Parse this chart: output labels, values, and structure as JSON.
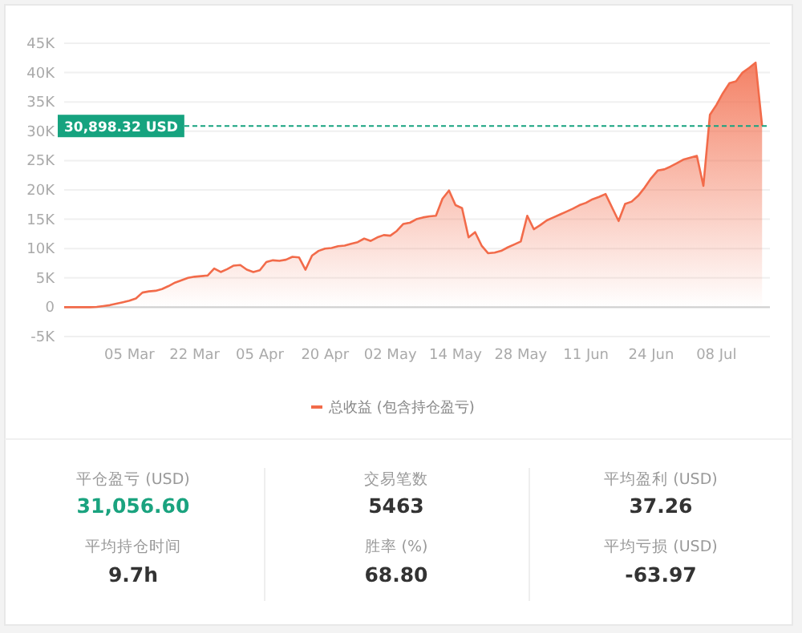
{
  "chart_data": [
    {
      "type": "area",
      "categories": [
        null,
        null,
        null,
        null,
        null,
        null,
        null,
        null,
        null,
        null,
        "05 Mar",
        null,
        null,
        null,
        null,
        null,
        null,
        null,
        null,
        null,
        "22 Mar",
        null,
        null,
        null,
        null,
        null,
        null,
        null,
        null,
        null,
        "05 Apr",
        null,
        null,
        null,
        null,
        null,
        null,
        null,
        null,
        null,
        "20 Apr",
        null,
        null,
        null,
        null,
        null,
        null,
        null,
        null,
        null,
        "02 May",
        null,
        null,
        null,
        null,
        null,
        null,
        null,
        null,
        null,
        "14 May",
        null,
        null,
        null,
        null,
        null,
        null,
        null,
        null,
        null,
        "28 May",
        null,
        null,
        null,
        null,
        null,
        null,
        null,
        null,
        null,
        "11 Jun",
        null,
        null,
        null,
        null,
        null,
        null,
        null,
        null,
        null,
        "24 Jun",
        null,
        null,
        null,
        null,
        null,
        null,
        null,
        null,
        null,
        "08 Jul",
        null,
        null,
        null,
        null,
        null,
        null,
        null
      ],
      "series": [
        {
          "name": "总收益 (包含持仓盈亏)",
          "color": "#f26b4a",
          "values": [
            0,
            0,
            0,
            0,
            0,
            50,
            200,
            350,
            600,
            850,
            1100,
            1500,
            2500,
            2700,
            2800,
            3100,
            3600,
            4200,
            4600,
            5000,
            5200,
            5300,
            5400,
            6600,
            6000,
            6500,
            7100,
            7200,
            6400,
            6000,
            6300,
            7700,
            8000,
            7900,
            8100,
            8600,
            8500,
            6400,
            8800,
            9600,
            10000,
            10100,
            10400,
            10500,
            10800,
            11100,
            11700,
            11300,
            11900,
            12300,
            12200,
            13000,
            14200,
            14400,
            15000,
            15300,
            15500,
            15600,
            18500,
            19900,
            17400,
            16900,
            11900,
            12800,
            10500,
            9200,
            9300,
            9600,
            10200,
            10700,
            11200,
            15600,
            13300,
            14000,
            14800,
            15300,
            15800,
            16300,
            16800,
            17400,
            17800,
            18400,
            18800,
            19300,
            17000,
            14700,
            17600,
            18000,
            19000,
            20400,
            22000,
            23300,
            23500,
            24000,
            24600,
            25200,
            25500,
            25800,
            20700,
            32800,
            34500,
            36500,
            38200,
            38500,
            40000,
            40800,
            41700,
            30898.32
          ]
        }
      ],
      "ylim": [
        -5000,
        45000
      ],
      "yticks": [
        {
          "value": -5000,
          "label": "-5K"
        },
        0,
        {
          "value": 5000,
          "label": "5K"
        },
        {
          "value": 10000,
          "label": "10K"
        },
        {
          "value": 15000,
          "label": "15K"
        },
        {
          "value": 20000,
          "label": "20K"
        },
        {
          "value": 25000,
          "label": "25K"
        },
        {
          "value": 30000,
          "label": "30K"
        },
        {
          "value": 35000,
          "label": "35K"
        },
        {
          "value": 40000,
          "label": "40K"
        },
        {
          "value": 45000,
          "label": "45K"
        }
      ],
      "ref_lines": [
        {
          "axis": "y",
          "value": 30898.32,
          "label": "30,898.32 USD",
          "color": "#16a37f",
          "line_style": "dashed"
        }
      ],
      "grid": "y",
      "legend": "bottom",
      "marker": "none"
    },
    {
      "type": "other",
      "annotations": [
        "平仓盈亏 (USD)",
        "31,056.60",
        "交易笔数",
        "5463",
        "平均盈利 (USD)",
        "37.26",
        "平均持仓时间",
        "9.7h",
        "胜率 (%)",
        "68.80",
        "平均亏损 (USD)",
        "-63.97"
      ]
    }
  ]
}
